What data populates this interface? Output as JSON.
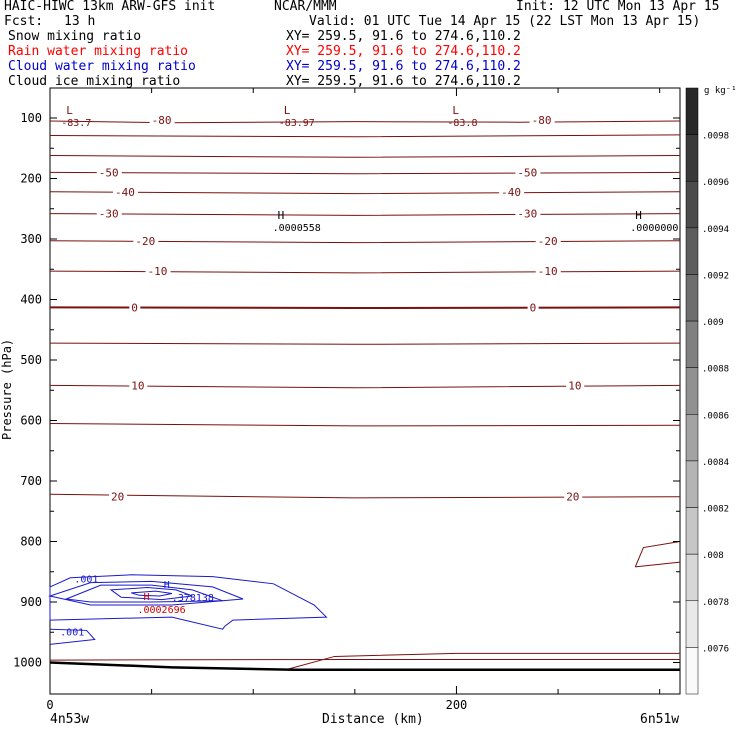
{
  "header": {
    "model_line": "HAIC-HIWC 13km ARW-GFS init",
    "org": "NCAR/MMM",
    "init": "Init: 12 UTC Mon 13 Apr 15",
    "fcst_label": "Fcst:",
    "fcst_value": "13 h",
    "valid": "Valid: 01 UTC Tue 14 Apr 15 (22 LST Mon 13 Apr 15)"
  },
  "legend": [
    {
      "name": "Snow mixing ratio",
      "xy": "XY= 259.5, 91.6 to 274.6,110.2",
      "color": "#000000"
    },
    {
      "name": "Rain water mixing ratio",
      "xy": "XY= 259.5, 91.6 to 274.6,110.2",
      "color": "#ff0000"
    },
    {
      "name": "Cloud water mixing ratio",
      "xy": "XY= 259.5, 91.6 to 274.6,110.2",
      "color": "#0000cc"
    },
    {
      "name": "Cloud ice mixing ratio",
      "xy": "XY= 259.5, 91.6 to 274.6,110.2",
      "color": "#000000"
    }
  ],
  "colors": {
    "temperature": "#7a1010",
    "cloud_water": "#1a1acc",
    "rain": "#cc0000",
    "terrain": "#000000"
  },
  "chart_data": {
    "type": "contour",
    "ylabel": "Pressure (hPa)",
    "xlabel": "Distance (km)",
    "ylim": [
      1050,
      50
    ],
    "xlim": [
      0,
      310
    ],
    "y_ticks": [
      100,
      200,
      300,
      400,
      500,
      600,
      700,
      800,
      900,
      1000
    ],
    "x_ticks": [
      0,
      200
    ],
    "x_endpoints": {
      "left": "4n53w",
      "right": "6n51w"
    },
    "temperature_contours": [
      {
        "value": -80,
        "label": "-80",
        "points": [
          [
            0,
            105
          ],
          [
            60,
            108
          ],
          [
            150,
            106
          ],
          [
            230,
            107
          ],
          [
            310,
            105
          ]
        ]
      },
      {
        "value": -70,
        "label": "",
        "points": [
          [
            0,
            129
          ],
          [
            150,
            131
          ],
          [
            310,
            128
          ]
        ]
      },
      {
        "value": -60,
        "label": "",
        "points": [
          [
            0,
            162
          ],
          [
            150,
            165
          ],
          [
            310,
            162
          ]
        ]
      },
      {
        "value": -50,
        "label": "-50",
        "points": [
          [
            0,
            190
          ],
          [
            150,
            192
          ],
          [
            310,
            190
          ]
        ]
      },
      {
        "value": -40,
        "label": "-40",
        "points": [
          [
            0,
            222
          ],
          [
            150,
            225
          ],
          [
            310,
            222
          ]
        ]
      },
      {
        "value": -30,
        "label": "-30",
        "points": [
          [
            0,
            258
          ],
          [
            150,
            261
          ],
          [
            310,
            258
          ]
        ]
      },
      {
        "value": -20,
        "label": "-20",
        "points": [
          [
            0,
            303
          ],
          [
            150,
            306
          ],
          [
            310,
            303
          ]
        ]
      },
      {
        "value": -10,
        "label": "-10",
        "points": [
          [
            0,
            353
          ],
          [
            150,
            356
          ],
          [
            310,
            353
          ]
        ]
      },
      {
        "value": 0,
        "label": "0",
        "points": [
          [
            0,
            413
          ],
          [
            150,
            414
          ],
          [
            310,
            413
          ]
        ]
      },
      {
        "value": 5,
        "label": "",
        "points": [
          [
            0,
            472
          ],
          [
            150,
            474
          ],
          [
            310,
            472
          ]
        ]
      },
      {
        "value": 10,
        "label": "10",
        "points": [
          [
            0,
            542
          ],
          [
            150,
            546
          ],
          [
            310,
            542
          ]
        ]
      },
      {
        "value": 15,
        "label": "",
        "points": [
          [
            0,
            605
          ],
          [
            150,
            609
          ],
          [
            310,
            608
          ]
        ]
      },
      {
        "value": 20,
        "label": "20",
        "points": [
          [
            0,
            722
          ],
          [
            150,
            728
          ],
          [
            310,
            726
          ]
        ]
      }
    ],
    "temperature_labels": [
      {
        "text": "-80",
        "x": 50,
        "p": 103
      },
      {
        "text": "-80",
        "x": 237,
        "p": 103
      },
      {
        "text": "-50",
        "x": 24,
        "p": 190
      },
      {
        "text": "-50",
        "x": 230,
        "p": 190
      },
      {
        "text": "-40",
        "x": 32,
        "p": 222
      },
      {
        "text": "-40",
        "x": 222,
        "p": 222
      },
      {
        "text": "-30",
        "x": 24,
        "p": 258
      },
      {
        "text": "-30",
        "x": 230,
        "p": 258
      },
      {
        "text": "-20",
        "x": 42,
        "p": 303
      },
      {
        "text": "-20",
        "x": 240,
        "p": 303
      },
      {
        "text": "-10",
        "x": 48,
        "p": 353
      },
      {
        "text": "-10",
        "x": 240,
        "p": 353
      },
      {
        "text": "0",
        "x": 40,
        "p": 413
      },
      {
        "text": "0",
        "x": 236,
        "p": 413
      },
      {
        "text": "10",
        "x": 40,
        "p": 542
      },
      {
        "text": "10",
        "x": 255,
        "p": 542
      },
      {
        "text": "20",
        "x": 30,
        "p": 726
      },
      {
        "text": "20",
        "x": 254,
        "p": 726
      }
    ],
    "extrema": [
      {
        "letter": "L",
        "value": "-83.7",
        "x": 8,
        "p": 93
      },
      {
        "letter": "L",
        "value": "-83.97",
        "x": 115,
        "p": 93
      },
      {
        "letter": "L",
        "value": "-83.8",
        "x": 198,
        "p": 93
      },
      {
        "letter": "H",
        "value": ".0000558",
        "x": 112,
        "p": 267
      },
      {
        "letter": "H",
        "value": ".0000000",
        "x": 288,
        "p": 267
      }
    ],
    "cloud_water": {
      "contour_labels": [
        ".001",
        ".001"
      ],
      "max_value": ".378138",
      "max_location": {
        "x": 56,
        "p": 877
      },
      "rain_max_value": ".0002696",
      "rain_max_location": {
        "x": 46,
        "p": 887
      }
    },
    "colorbar": {
      "unit": "g kg⁻¹",
      "ticks": [
        ".0098",
        ".0096",
        ".0094",
        ".0092",
        ".009",
        ".0088",
        ".0086",
        ".0084",
        ".0082",
        ".008",
        ".0078",
        ".0076"
      ]
    }
  }
}
